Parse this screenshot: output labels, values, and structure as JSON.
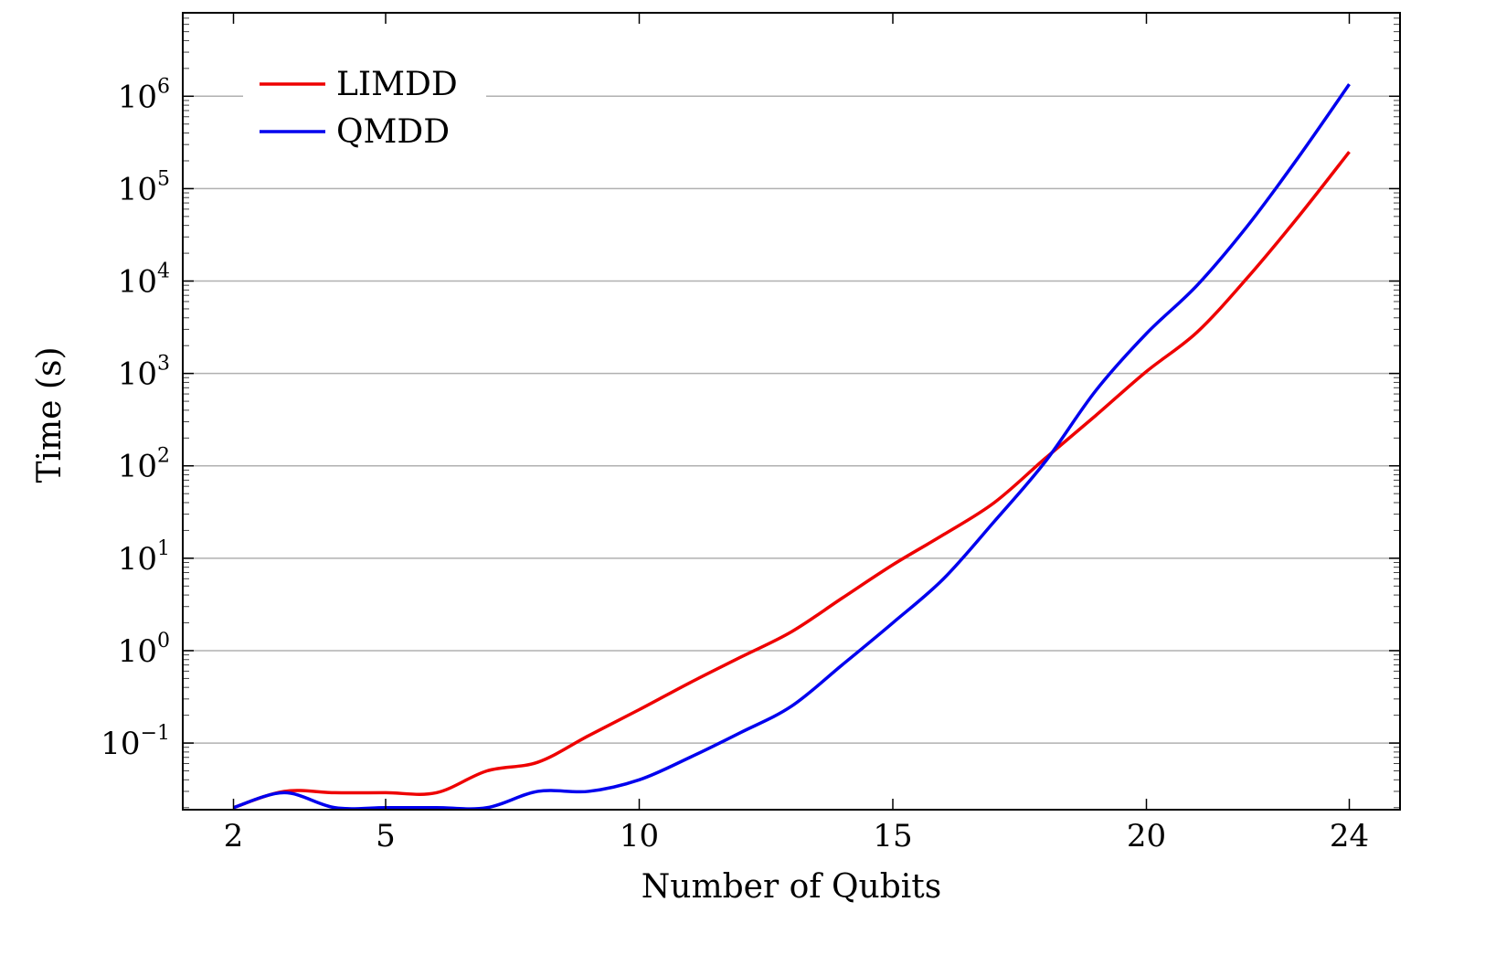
{
  "chart_data": {
    "type": "line",
    "title": "",
    "xlabel": "Number of Qubits",
    "ylabel": "Time (s)",
    "xlim": [
      1,
      25
    ],
    "ylim": [
      0.019,
      8000000
    ],
    "y_scale": "log",
    "grid": "horizontal major lines",
    "legend_position": "top-left",
    "x_ticks": [
      2,
      5,
      10,
      15,
      20,
      24
    ],
    "x_tick_labels": [
      "2",
      "5",
      "10",
      "15",
      "20",
      "24"
    ],
    "y_ticks": [
      0.1,
      1,
      10,
      100,
      1000,
      10000,
      100000,
      1000000
    ],
    "y_tick_labels": [
      {
        "base": "10",
        "exp": "−1"
      },
      {
        "base": "10",
        "exp": "0"
      },
      {
        "base": "10",
        "exp": "1"
      },
      {
        "base": "10",
        "exp": "2"
      },
      {
        "base": "10",
        "exp": "3"
      },
      {
        "base": "10",
        "exp": "4"
      },
      {
        "base": "10",
        "exp": "5"
      },
      {
        "base": "10",
        "exp": "6"
      }
    ],
    "series": [
      {
        "name": "LIMDD",
        "color": "#ee0000",
        "x": [
          2,
          3,
          4,
          5,
          6,
          7,
          8,
          9,
          10,
          11,
          12,
          13,
          14,
          15,
          16,
          17,
          18,
          19,
          20,
          21,
          22,
          23,
          24
        ],
        "y": [
          0.02,
          0.03,
          0.029,
          0.029,
          0.029,
          0.05,
          0.062,
          0.12,
          0.23,
          0.45,
          0.85,
          1.6,
          3.7,
          8.5,
          18,
          40,
          120,
          350,
          1050,
          2800,
          11000,
          50000,
          250000
        ]
      },
      {
        "name": "QMDD",
        "color": "#0000ee",
        "x": [
          2,
          3,
          4,
          5,
          6,
          7,
          8,
          9,
          10,
          11,
          12,
          13,
          14,
          15,
          16,
          17,
          18,
          19,
          20,
          21,
          22,
          23,
          24
        ],
        "y": [
          0.02,
          0.029,
          0.02,
          0.02,
          0.02,
          0.02,
          0.03,
          0.03,
          0.04,
          0.07,
          0.13,
          0.25,
          0.7,
          2,
          6,
          25,
          110,
          650,
          2700,
          9000,
          40000,
          220000,
          1350000
        ]
      }
    ]
  }
}
